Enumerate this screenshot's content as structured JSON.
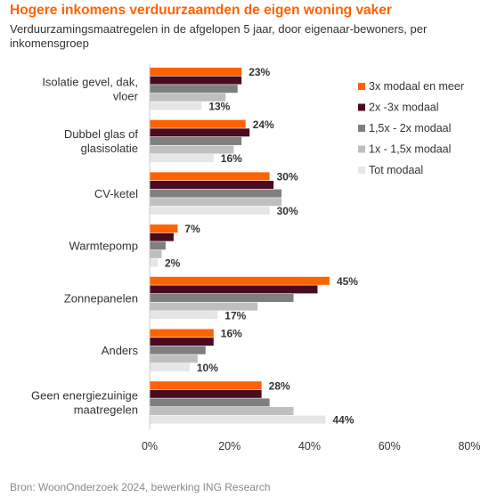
{
  "chart_data": {
    "type": "bar",
    "orientation": "horizontal",
    "title": "Hogere inkomens verduurzaamden de eigen woning vaker",
    "subtitle": "Verduurzamingsmaatregelen in de afgelopen 5 jaar, door eigenaar-bewoners, per inkomensgroep",
    "source": "Bron: WoonOnderzoek 2024, bewerking ING Research",
    "categories": [
      [
        "Isolatie gevel, dak,",
        "vloer"
      ],
      [
        "Dubbel glas of",
        "glasisolatie"
      ],
      [
        "CV-ketel"
      ],
      [
        "Warmtepomp"
      ],
      [
        "Zonnepanelen"
      ],
      [
        "Anders"
      ],
      [
        "Geen energiezuinige",
        "maatregelen"
      ]
    ],
    "series": [
      {
        "name": "3x modaal en meer",
        "color": "#FF6200",
        "values": [
          23,
          24,
          30,
          7,
          45,
          16,
          28
        ]
      },
      {
        "name": "2x -3x modaal",
        "color": "#4A0B1F",
        "values": [
          23,
          25,
          31,
          6,
          42,
          16,
          28
        ]
      },
      {
        "name": "1,5x - 2x modaal",
        "color": "#7F7F7F",
        "values": [
          22,
          23,
          33,
          4,
          36,
          14,
          30
        ]
      },
      {
        "name": "1x - 1,5x modaal",
        "color": "#BFBFBF",
        "values": [
          19,
          21,
          33,
          3,
          27,
          12,
          36
        ]
      },
      {
        "name": "Tot modaal",
        "color": "#E6E6E6",
        "values": [
          13,
          16,
          30,
          2,
          17,
          10,
          44
        ]
      }
    ],
    "data_labels": [
      {
        "category_index": 0,
        "top": "23%",
        "bottom": "13%"
      },
      {
        "category_index": 1,
        "top": "24%",
        "bottom": "16%"
      },
      {
        "category_index": 2,
        "top": "30%",
        "bottom": "30%"
      },
      {
        "category_index": 3,
        "top": "7%",
        "bottom": "2%"
      },
      {
        "category_index": 4,
        "top": "45%",
        "bottom": "17%"
      },
      {
        "category_index": 5,
        "top": "16%",
        "bottom": "10%"
      },
      {
        "category_index": 6,
        "top": "28%",
        "bottom": "44%"
      }
    ],
    "xlim": [
      0,
      80
    ],
    "xticks": [
      "0%",
      "20%",
      "40%",
      "60%",
      "80%"
    ],
    "grid": false,
    "legend_position": "right"
  }
}
